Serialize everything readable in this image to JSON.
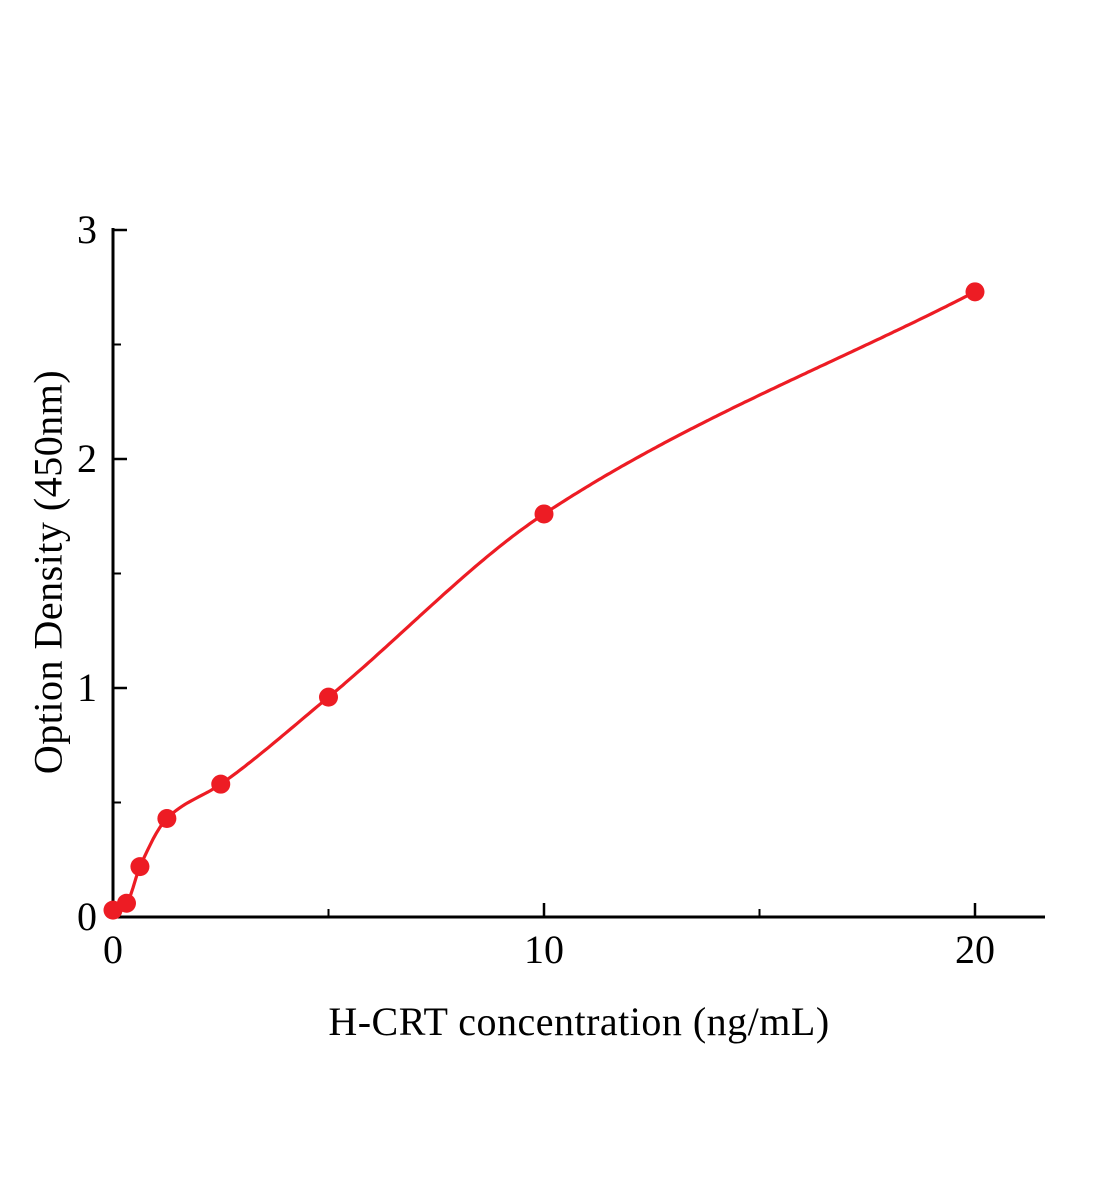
{
  "chart_data": {
    "type": "scatter",
    "title": "",
    "xlabel": "H-CRT concentration (ng/mL)",
    "ylabel": "Option Density (450nm)",
    "x": [
      0,
      0.313,
      0.625,
      1.25,
      2.5,
      5,
      10,
      20
    ],
    "y": [
      0.03,
      0.06,
      0.22,
      0.43,
      0.58,
      0.96,
      1.76,
      2.73
    ],
    "curve": "smooth standard-curve fit through the data points",
    "x_ticks": [
      0,
      10,
      20
    ],
    "y_ticks": [
      0,
      1,
      2,
      3
    ],
    "x_minor_ticks": [
      5,
      15
    ],
    "y_minor_ticks": [
      0.5,
      1.5,
      2.5
    ],
    "xlim": [
      0,
      21.6
    ],
    "ylim": [
      0,
      3
    ],
    "grid": false,
    "legend": null,
    "marker_color": "#ed1c24",
    "line_color": "#ed1c24",
    "axis_color": "#000000"
  }
}
